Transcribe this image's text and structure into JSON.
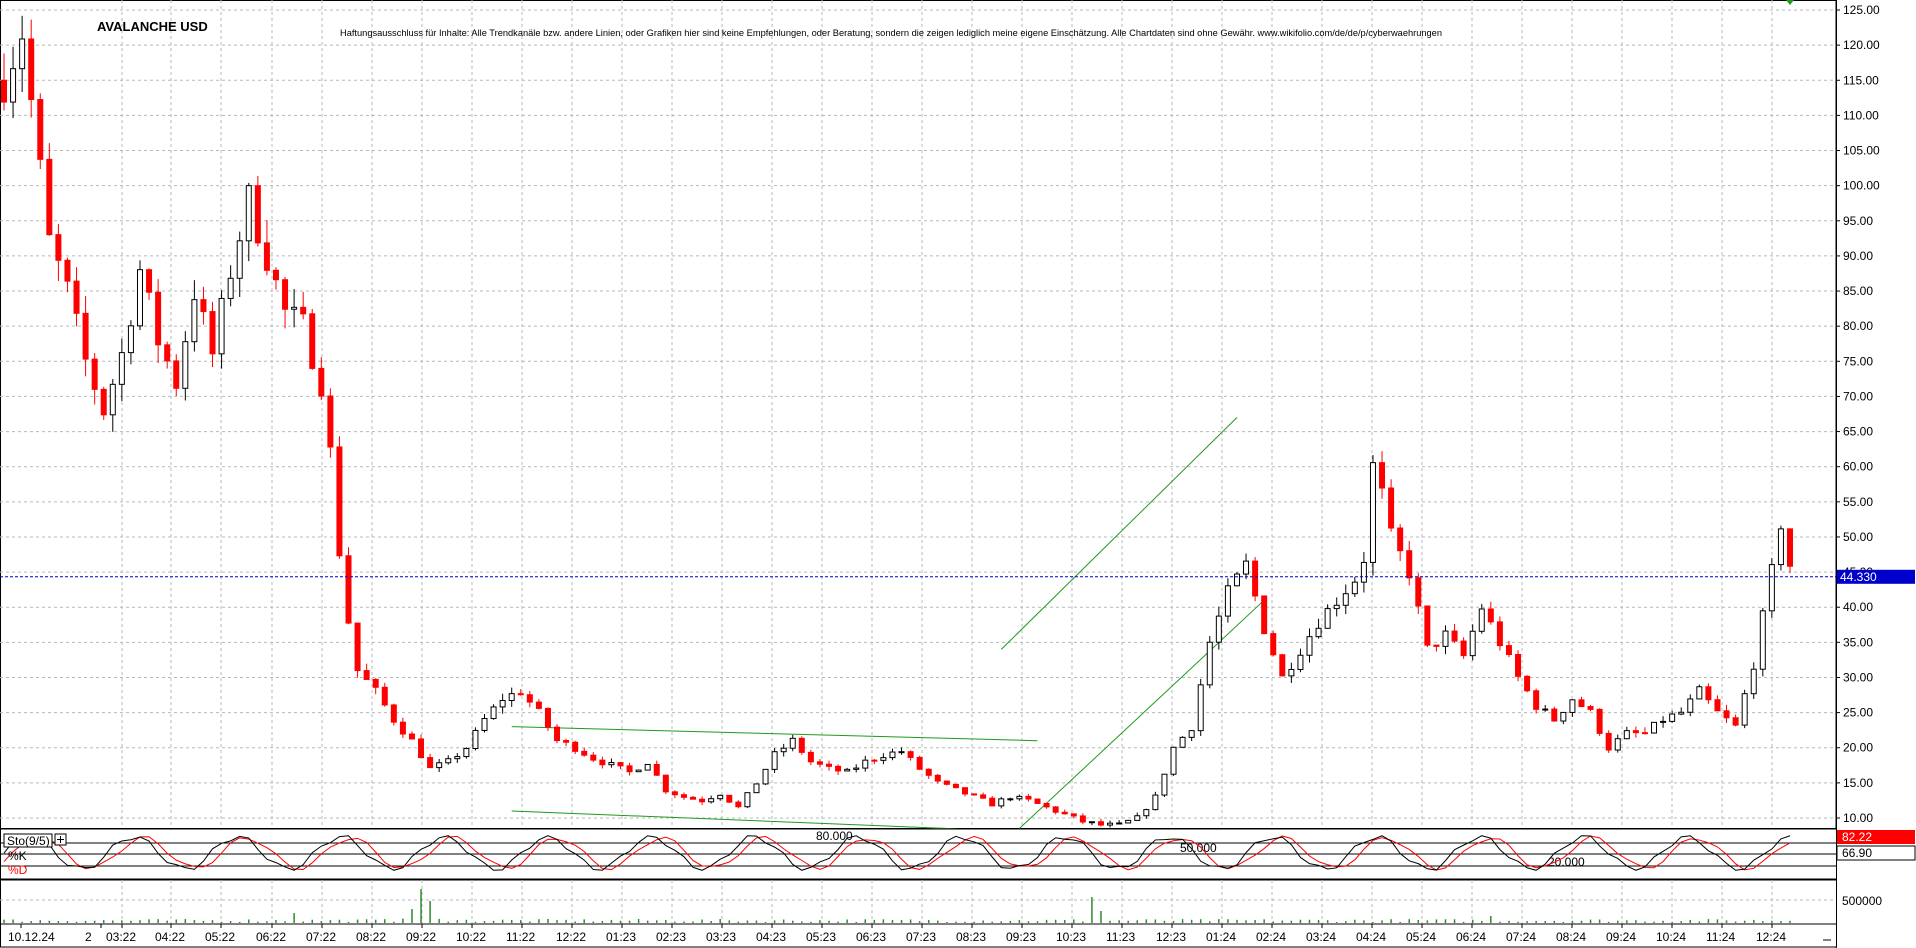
{
  "chart_data": {
    "type": "candlestick",
    "title": "AVALANCHE USD",
    "disclaimer": "Haftungsausschluss für Inhalte: Alle Trendkanäle bzw. andere Linien, oder Grafiken hier sind keine Empfehlungen, oder Beratung, sondern die zeigen lediglich meine eigene Einschätzung. Alle Chartdaten sind ohne Gewähr.  www.wikifolio.com/de/de/p/cyberwaehrungen",
    "last_price": "44.330",
    "y_ticks": [
      "125.00",
      "120.00",
      "115.00",
      "110.00",
      "105.00",
      "100.00",
      "95.00",
      "90.00",
      "85.00",
      "80.00",
      "75.00",
      "70.00",
      "65.00",
      "60.00",
      "55.00",
      "50.00",
      "45.00",
      "40.00",
      "35.00",
      "30.00",
      "25.00",
      "20.00",
      "15.00",
      "10.00"
    ],
    "ylim": [
      5,
      127
    ],
    "x_labels": [
      "10.12.24",
      "2",
      "03:22",
      "04:22",
      "05:22",
      "06:22",
      "07:22",
      "08:22",
      "09:22",
      "10:22",
      "11:22",
      "12:22",
      "01:23",
      "02:23",
      "03:23",
      "04:23",
      "05:23",
      "06:23",
      "07:23",
      "08:23",
      "09:23",
      "10:23",
      "11:23",
      "12:23",
      "01:24",
      "02:24",
      "03:24",
      "04:24",
      "05:24",
      "06:24",
      "07:24",
      "08:24",
      "09:24",
      "10:24",
      "11:24",
      "12:24"
    ],
    "price_path": [
      [
        0,
        115
      ],
      [
        2,
        122
      ],
      [
        5,
        92
      ],
      [
        7,
        85
      ],
      [
        9,
        75
      ],
      [
        11,
        68
      ],
      [
        13,
        76
      ],
      [
        15,
        88
      ],
      [
        17,
        78
      ],
      [
        19,
        72
      ],
      [
        21,
        85
      ],
      [
        23,
        76
      ],
      [
        25,
        88
      ],
      [
        27,
        98
      ],
      [
        29,
        90
      ],
      [
        31,
        82
      ],
      [
        33,
        80
      ],
      [
        35,
        72
      ],
      [
        36,
        62
      ],
      [
        37,
        48
      ],
      [
        38,
        38
      ],
      [
        39,
        31
      ],
      [
        41,
        28
      ],
      [
        43,
        24
      ],
      [
        45,
        21
      ],
      [
        47,
        17
      ],
      [
        49,
        18
      ],
      [
        51,
        20
      ],
      [
        53,
        24
      ],
      [
        55,
        27
      ],
      [
        57,
        28
      ],
      [
        59,
        25
      ],
      [
        61,
        21
      ],
      [
        63,
        20
      ],
      [
        65,
        18.5
      ],
      [
        67,
        17.5
      ],
      [
        69,
        16.5
      ],
      [
        71,
        18
      ],
      [
        73,
        14
      ],
      [
        75,
        13
      ],
      [
        77,
        12.5
      ],
      [
        79,
        13.5
      ],
      [
        81,
        11.5
      ],
      [
        83,
        15
      ],
      [
        85,
        19
      ],
      [
        87,
        21
      ],
      [
        89,
        18
      ],
      [
        91,
        17
      ],
      [
        93,
        16.5
      ],
      [
        95,
        18
      ],
      [
        97,
        19
      ],
      [
        99,
        19.5
      ],
      [
        101,
        17
      ],
      [
        103,
        15
      ],
      [
        105,
        14
      ],
      [
        107,
        13
      ],
      [
        109,
        12
      ],
      [
        111,
        13
      ],
      [
        113,
        12.5
      ],
      [
        115,
        11.5
      ],
      [
        117,
        10.5
      ],
      [
        119,
        9.5
      ],
      [
        121,
        9
      ],
      [
        123,
        9
      ],
      [
        125,
        10
      ],
      [
        127,
        13
      ],
      [
        129,
        20
      ],
      [
        131,
        23
      ],
      [
        133,
        35
      ],
      [
        135,
        42
      ],
      [
        137,
        46
      ],
      [
        139,
        37
      ],
      [
        141,
        30
      ],
      [
        143,
        34
      ],
      [
        145,
        38
      ],
      [
        147,
        41
      ],
      [
        149,
        44
      ],
      [
        150,
        47
      ],
      [
        151,
        60
      ],
      [
        152,
        56
      ],
      [
        153,
        50
      ],
      [
        155,
        45
      ],
      [
        157,
        34
      ],
      [
        159,
        36
      ],
      [
        161,
        33
      ],
      [
        163,
        40
      ],
      [
        165,
        35
      ],
      [
        167,
        30
      ],
      [
        169,
        26
      ],
      [
        171,
        24
      ],
      [
        173,
        27
      ],
      [
        175,
        25
      ],
      [
        177,
        20
      ],
      [
        179,
        22
      ],
      [
        181,
        22
      ],
      [
        183,
        24
      ],
      [
        185,
        25
      ],
      [
        187,
        28
      ],
      [
        189,
        25
      ],
      [
        191,
        23
      ],
      [
        193,
        32
      ],
      [
        195,
        45
      ],
      [
        196,
        52
      ],
      [
        197,
        46
      ]
    ],
    "channel_lines": [
      {
        "from": [
          56,
          23
        ],
        "to": [
          114,
          21
        ]
      },
      {
        "from": [
          56,
          11
        ],
        "to": [
          114,
          8
        ]
      },
      {
        "from": [
          110,
          34
        ],
        "to": [
          136,
          67
        ]
      },
      {
        "from": [
          112,
          8.5
        ],
        "to": [
          139,
          41
        ]
      }
    ],
    "last_price_level": 44.33,
    "stochastic": {
      "label": "Sto(9/5)",
      "k_label": "%K",
      "d_label": "%D",
      "k_value": "82.22",
      "d_value": "66.90",
      "levels": [
        "80.000",
        "50.000",
        "20.000"
      ]
    },
    "volume": {
      "tick": "500000"
    },
    "colors": {
      "up": "#000000",
      "down": "#ff0000",
      "trend": "#1f9a1f",
      "last_line": "#0000cc",
      "k_line": "#000000",
      "d_line": "#ff0000",
      "volume": "#2e8b2e"
    }
  }
}
